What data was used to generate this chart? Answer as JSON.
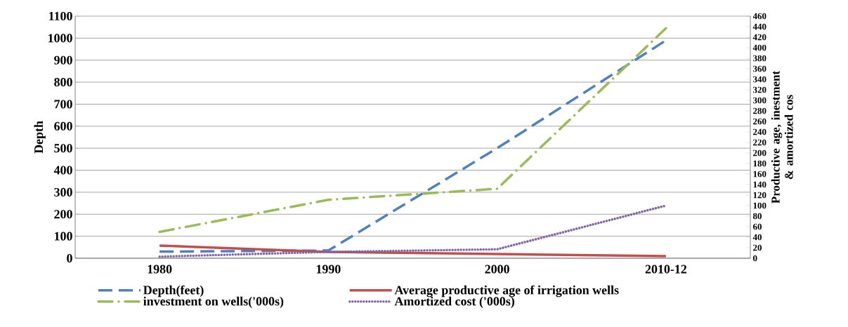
{
  "chart_data": {
    "type": "line",
    "categories": [
      "1980",
      "1990",
      "2000",
      "2010-12"
    ],
    "ylabel": "Depth",
    "y2label": "Productive age, inestment & amortized cos",
    "ylim": [
      0,
      1100
    ],
    "yticks": [
      0,
      100,
      200,
      300,
      400,
      500,
      600,
      700,
      800,
      900,
      1000,
      1100
    ],
    "y2lim": [
      0,
      460
    ],
    "y2ticks": [
      0,
      20,
      40,
      60,
      80,
      100,
      120,
      140,
      160,
      180,
      200,
      220,
      240,
      260,
      280,
      300,
      320,
      340,
      360,
      380,
      400,
      420,
      440,
      460
    ],
    "grid": "y",
    "legend": "bottom",
    "marker": "none",
    "series": [
      {
        "name": "Depth(feet)",
        "color": "#4f81bd",
        "values": [
          30,
          35,
          500,
          990
        ],
        "line_style": "dashed"
      },
      {
        "name": "Average  productive age of irrigation wells",
        "color": "#c0504d",
        "values": [
          24,
          12,
          8,
          4
        ],
        "axis": "y2",
        "line_style": "solid"
      },
      {
        "name": "investment on wells('000s)",
        "color": "#9bbb59",
        "values": [
          50,
          111,
          132,
          437
        ],
        "axis": "y2",
        "line_style": "dashdot"
      },
      {
        "name": "Amortized cost ('000s)",
        "color": "#8064a2",
        "values": [
          3,
          12,
          17,
          100
        ],
        "axis": "y2",
        "line_style": "dotted"
      }
    ]
  }
}
